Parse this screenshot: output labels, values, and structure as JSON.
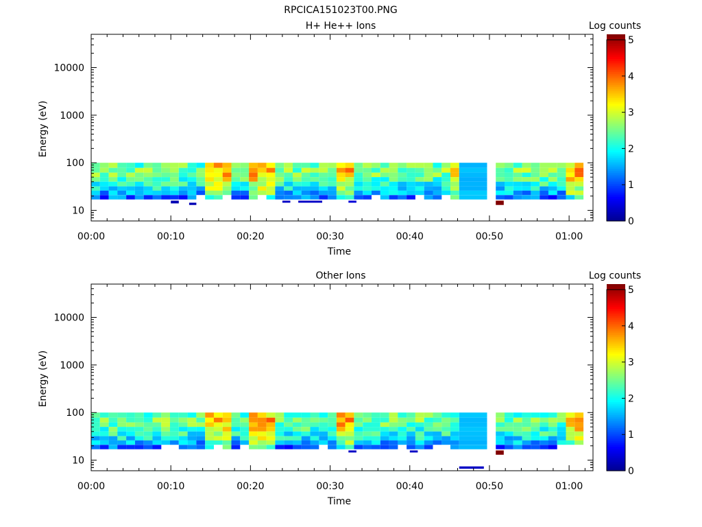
{
  "figure_title": "RPCICA151023T00.PNG",
  "colors": {
    "colormap": [
      "#00008f",
      "#0000ff",
      "#0080ff",
      "#00ffff",
      "#80ff80",
      "#ffff00",
      "#ff8000",
      "#ff0000",
      "#800000"
    ]
  },
  "chart_data": [
    {
      "type": "heatmap",
      "title": "H+ He++ Ions",
      "xlabel": "Time",
      "ylabel": "Energy (eV)",
      "ylog": true,
      "ylim": [
        6,
        50000
      ],
      "xlim": [
        0,
        63
      ],
      "x_ticks": [
        {
          "v": 0,
          "label": "00:00"
        },
        {
          "v": 10,
          "label": "00:10"
        },
        {
          "v": 20,
          "label": "00:20"
        },
        {
          "v": 30,
          "label": "00:30"
        },
        {
          "v": 40,
          "label": "00:40"
        },
        {
          "v": 50,
          "label": "00:50"
        },
        {
          "v": 60,
          "label": "01:00"
        }
      ],
      "y_ticks": [
        {
          "v": 10,
          "label": "10"
        },
        {
          "v": 100,
          "label": "100"
        },
        {
          "v": 1000,
          "label": "1000"
        },
        {
          "v": 10000,
          "label": "10000"
        }
      ],
      "colorbar": {
        "label": "Log counts",
        "min": 0,
        "max": 5,
        "ticks": [
          "0",
          "1",
          "2",
          "3",
          "4",
          "5"
        ]
      },
      "energy_bins": [
        100,
        78,
        62,
        50,
        40,
        32,
        26,
        21,
        17
      ],
      "time_bins_start": [
        0,
        1.1,
        2.2,
        3.3,
        4.4,
        5.5,
        6.6,
        7.7,
        8.8,
        9.9,
        11,
        12.1,
        13.2,
        14.3,
        15.4,
        16.5,
        17.6,
        18.7,
        19.8,
        20.9,
        22,
        23.1,
        24.2,
        25.3,
        26.4,
        27.5,
        28.6,
        29.7,
        30.8,
        31.9,
        33,
        34.1,
        35.2,
        36.3,
        37.4,
        38.5,
        39.6,
        40.7,
        41.8,
        42.9,
        44,
        45.1,
        46.2,
        50.8,
        51.9,
        53,
        54.1,
        55.2,
        56.3,
        57.4,
        58.5,
        59.6,
        60.7
      ],
      "time_bin_width": 1.1,
      "wide_bin": {
        "start": 46.2,
        "end": 49.7
      },
      "gap": {
        "start": 49.7,
        "end": 50.8
      },
      "values_seed": 1,
      "hot_times": [
        15.4,
        21,
        31,
        46,
        60
      ],
      "extra_bins": [
        {
          "t0": 10,
          "t1": 11,
          "e0": 16,
          "e1": 14,
          "v": 0.2
        },
        {
          "t0": 12.3,
          "t1": 13.2,
          "e0": 14.5,
          "e1": 13,
          "v": 0.2
        },
        {
          "t0": 24,
          "t1": 25,
          "e0": 16,
          "e1": 14.5,
          "v": 0.3
        },
        {
          "t0": 26,
          "t1": 29,
          "e0": 16,
          "e1": 14.5,
          "v": 0.3
        },
        {
          "t0": 32.3,
          "t1": 33.3,
          "e0": 16,
          "e1": 14.5,
          "v": 0.4
        },
        {
          "t0": 50.8,
          "t1": 51.8,
          "e0": 16,
          "e1": 13,
          "v": 5.0
        }
      ]
    },
    {
      "type": "heatmap",
      "title": "Other Ions",
      "xlabel": "Time",
      "ylabel": "Energy (eV)",
      "ylog": true,
      "ylim": [
        6,
        50000
      ],
      "xlim": [
        0,
        63
      ],
      "x_ticks": [
        {
          "v": 0,
          "label": "00:00"
        },
        {
          "v": 10,
          "label": "00:10"
        },
        {
          "v": 20,
          "label": "00:20"
        },
        {
          "v": 30,
          "label": "00:30"
        },
        {
          "v": 40,
          "label": "00:40"
        },
        {
          "v": 50,
          "label": "00:50"
        },
        {
          "v": 60,
          "label": "01:00"
        }
      ],
      "y_ticks": [
        {
          "v": 10,
          "label": "10"
        },
        {
          "v": 100,
          "label": "100"
        },
        {
          "v": 1000,
          "label": "1000"
        },
        {
          "v": 10000,
          "label": "10000"
        }
      ],
      "colorbar": {
        "label": "Log counts",
        "min": 0,
        "max": 5,
        "ticks": [
          "0",
          "1",
          "2",
          "3",
          "4",
          "5"
        ]
      },
      "energy_bins": [
        100,
        78,
        62,
        50,
        40,
        32,
        26,
        21,
        17
      ],
      "time_bins_start": [
        0,
        1.1,
        2.2,
        3.3,
        4.4,
        5.5,
        6.6,
        7.7,
        8.8,
        9.9,
        11,
        12.1,
        13.2,
        14.3,
        15.4,
        16.5,
        17.6,
        18.7,
        19.8,
        20.9,
        22,
        23.1,
        24.2,
        25.3,
        26.4,
        27.5,
        28.6,
        29.7,
        30.8,
        31.9,
        33,
        34.1,
        35.2,
        36.3,
        37.4,
        38.5,
        39.6,
        40.7,
        41.8,
        42.9,
        44,
        45.1,
        46.2,
        50.8,
        51.9,
        53,
        54.1,
        55.2,
        56.3,
        57.4,
        58.5,
        59.6,
        60.7
      ],
      "time_bin_width": 1.1,
      "wide_bin": {
        "start": 46.2,
        "end": 49.7
      },
      "gap": {
        "start": 49.7,
        "end": 50.8
      },
      "values_seed": 7,
      "hot_times": [
        15.4,
        21,
        31,
        60
      ],
      "extra_bins": [
        {
          "t0": 32.3,
          "t1": 33.3,
          "e0": 16,
          "e1": 14.5,
          "v": 0.3
        },
        {
          "t0": 40,
          "t1": 41,
          "e0": 16,
          "e1": 14.5,
          "v": 0.3
        },
        {
          "t0": 46.2,
          "t1": 49.3,
          "e0": 7.4,
          "e1": 6.6,
          "v": 0.3
        },
        {
          "t0": 50.8,
          "t1": 51.8,
          "e0": 16,
          "e1": 13,
          "v": 5.0
        }
      ]
    }
  ]
}
